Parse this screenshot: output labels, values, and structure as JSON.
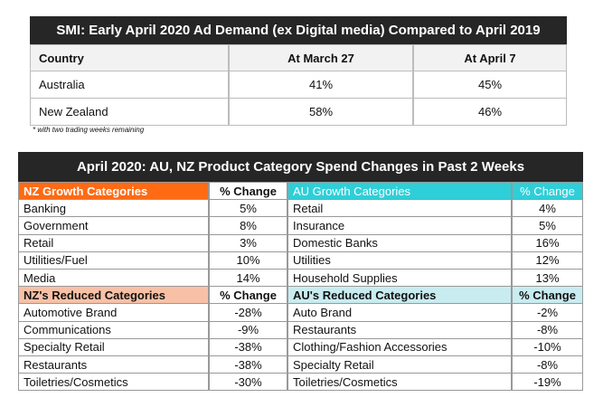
{
  "table1": {
    "title": "SMI: Early April 2020 Ad Demand (ex Digital media) Compared to April 2019",
    "columns": [
      "Country",
      "At March 27",
      "At April 7"
    ],
    "rows": [
      [
        "Australia",
        "41%",
        "45%"
      ],
      [
        "New Zealand",
        "58%",
        "46%"
      ]
    ],
    "footnote": "* with two trading weeks remaining"
  },
  "table2": {
    "title": "April 2020: AU, NZ Product Category Spend Changes in Past 2 Weeks",
    "sections": [
      {
        "header": [
          "NZ Growth Categories",
          "% Change",
          "AU Growth Categories",
          "% Change"
        ],
        "rows": [
          [
            "Banking",
            "5%",
            "Retail",
            "4%"
          ],
          [
            "Government",
            "8%",
            "Insurance",
            "5%"
          ],
          [
            "Retail",
            "3%",
            "Domestic Banks",
            "16%"
          ],
          [
            "Utilities/Fuel",
            "10%",
            "Utilities",
            "12%"
          ],
          [
            "Media",
            "14%",
            "Household Supplies",
            "13%"
          ]
        ]
      },
      {
        "header": [
          "NZ's Reduced Categories",
          "% Change",
          "AU's Reduced Categories",
          "% Change"
        ],
        "rows": [
          [
            "Automotive Brand",
            "-28%",
            "Auto Brand",
            "-2%"
          ],
          [
            "Communications",
            "-9%",
            "Restaurants",
            "-8%"
          ],
          [
            "Specialty Retail",
            "-38%",
            "Clothing/Fashion Accessories",
            "-10%"
          ],
          [
            "Restaurants",
            "-38%",
            "Specialty Retail",
            "-8%"
          ],
          [
            "Toiletries/Cosmetics",
            "-30%",
            "Toiletries/Cosmetics",
            "-19%"
          ]
        ]
      }
    ]
  }
}
